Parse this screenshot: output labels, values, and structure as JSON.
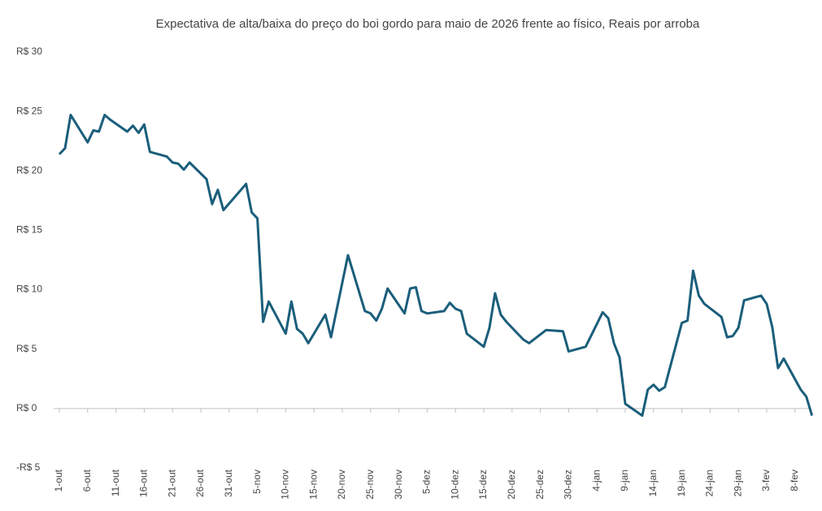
{
  "chart_data": {
    "type": "line",
    "title": "Expectativa de alta/baixa do preço do boi gordo para maio de 2026 frente ao físico, Reais por arroba",
    "x": [
      "1-out",
      "2-out",
      "3-out",
      "6-out",
      "7-out",
      "8-out",
      "9-out",
      "10-out",
      "13-out",
      "14-out",
      "15-out",
      "16-out",
      "17-out",
      "20-out",
      "21-out",
      "22-out",
      "23-out",
      "24-out",
      "27-out",
      "28-out",
      "29-out",
      "30-out",
      "3-nov",
      "4-nov",
      "5-nov",
      "6-nov",
      "7-nov",
      "10-nov",
      "11-nov",
      "12-nov",
      "13-nov",
      "14-nov",
      "17-nov",
      "18-nov",
      "21-nov",
      "24-nov",
      "25-nov",
      "26-nov",
      "27-nov",
      "28-nov",
      "1-dez",
      "2-dez",
      "3-dez",
      "4-dez",
      "5-dez",
      "8-dez",
      "9-dez",
      "10-dez",
      "11-dez",
      "12-dez",
      "15-dez",
      "16-dez",
      "17-dez",
      "18-dez",
      "19-dez",
      "22-dez",
      "23-dez",
      "26-dez",
      "29-dez",
      "30-dez",
      "2-jan",
      "5-jan",
      "6-jan",
      "7-jan",
      "8-jan",
      "9-jan",
      "12-jan",
      "13-jan",
      "14-jan",
      "15-jan",
      "16-jan",
      "19-jan",
      "20-jan",
      "21-jan",
      "22-jan",
      "23-jan",
      "26-jan",
      "27-jan",
      "28-jan",
      "29-jan",
      "30-jan",
      "2-fev",
      "3-fev",
      "4-fev",
      "5-fev",
      "6-fev",
      "9-fev",
      "10-fev",
      "11-fev"
    ],
    "values": [
      21.4,
      21.9,
      24.7,
      22.4,
      23.4,
      23.3,
      24.7,
      24.3,
      23.3,
      23.8,
      23.2,
      23.9,
      21.6,
      21.2,
      20.7,
      20.6,
      20.1,
      20.7,
      19.3,
      17.2,
      18.4,
      16.7,
      18.9,
      16.5,
      16.0,
      7.3,
      9.0,
      6.3,
      9.0,
      6.7,
      6.3,
      5.5,
      7.9,
      6.0,
      12.9,
      8.2,
      8.0,
      7.4,
      8.4,
      10.1,
      8.0,
      10.1,
      10.2,
      8.2,
      8.0,
      8.2,
      8.9,
      8.4,
      8.2,
      6.3,
      5.2,
      6.8,
      9.7,
      7.9,
      7.3,
      5.8,
      5.5,
      6.6,
      6.5,
      4.8,
      5.2,
      8.1,
      7.6,
      5.5,
      4.3,
      0.4,
      -0.6,
      1.6,
      2.0,
      1.5,
      1.8,
      7.2,
      7.4,
      11.6,
      9.5,
      8.8,
      7.7,
      6.0,
      6.1,
      6.8,
      9.1,
      9.5,
      8.8,
      6.8,
      3.4,
      4.2,
      1.6,
      1.0,
      -0.6
    ],
    "color": "#1b5e7b",
    "xticks": [
      "1-out",
      "6-out",
      "11-out",
      "16-out",
      "21-out",
      "26-out",
      "31-out",
      "5-nov",
      "10-nov",
      "15-nov",
      "20-nov",
      "25-nov",
      "30-nov",
      "5-dez",
      "10-dez",
      "15-dez",
      "20-dez",
      "25-dez",
      "30-dez",
      "4-jan",
      "9-jan",
      "14-jan",
      "19-jan",
      "24-jan",
      "29-jan",
      "3-fev",
      "8-fev"
    ],
    "ylim": [
      -5,
      30
    ],
    "yticks": [
      {
        "value": -5,
        "label": "-R$ 5"
      },
      {
        "value": 0,
        "label": "R$ 0"
      },
      {
        "value": 5,
        "label": "R$ 5"
      },
      {
        "value": 10,
        "label": "R$ 10"
      },
      {
        "value": 15,
        "label": "R$ 15"
      },
      {
        "value": 20,
        "label": "R$ 20"
      },
      {
        "value": 25,
        "label": "R$ 25"
      },
      {
        "value": 30,
        "label": "R$ 30"
      }
    ],
    "grid": false
  }
}
